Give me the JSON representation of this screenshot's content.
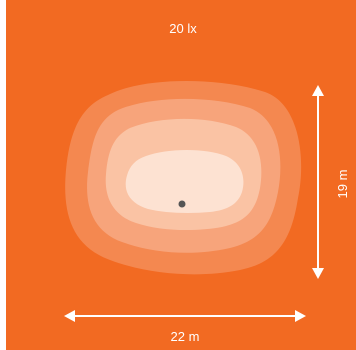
{
  "diagram": {
    "illuminance_label": "20 lx",
    "width_label": "22 m",
    "height_label": "19 m"
  },
  "colors": {
    "background": "#f26a22",
    "contour_1": "#f48850",
    "contour_2": "#f7a47b",
    "contour_3": "#fac3a4",
    "contour_4": "#fde2d2",
    "center_point": "#555555",
    "arrows": "#ffffff",
    "text": "#ffffff"
  }
}
